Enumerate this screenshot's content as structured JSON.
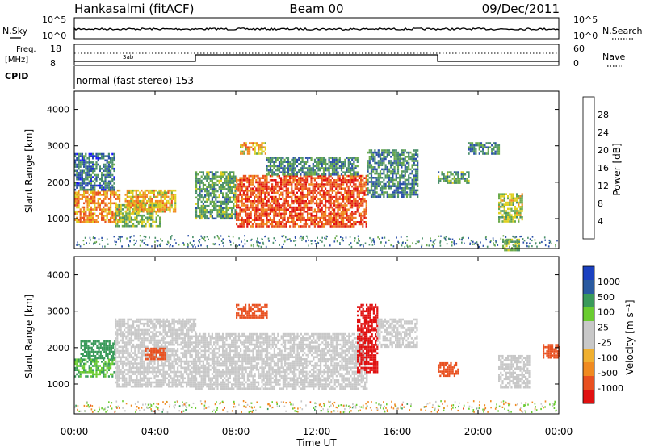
{
  "header": {
    "station": "Hankasalmi (fitACF)",
    "beam": "Beam 00",
    "date": "09/Dec/2011"
  },
  "params": {
    "nsky_label": "N.Sky",
    "nsearch_label": "N.Search",
    "noise_ticks": [
      "10^5",
      "10^0"
    ],
    "freq_label_1": "Freq.",
    "freq_label_2": "[MHz]",
    "freq_ticks": [
      "18",
      "8"
    ],
    "nave_label": "Nave",
    "nave_ticks": [
      "60",
      "0"
    ],
    "cpid_label": "CPID",
    "cpid_text": "normal (fast stereo) 153"
  },
  "colors": {
    "power": [
      "#1a1aff",
      "#2a4fa8",
      "#4a8f6a",
      "#6aaa4a",
      "#e0d020",
      "#f08a20",
      "#e85020",
      "#e01010"
    ],
    "velocity": [
      "#e01010",
      "#e85020",
      "#f08a20",
      "#f0b030",
      "#c8c8c8",
      "#c8c8c8",
      "#6acc30",
      "#3a9a5a",
      "#2a5aa0",
      "#1a40c0"
    ]
  },
  "chart_data": [
    {
      "type": "heatmap",
      "panel": "power",
      "ylabel": "Slant Range [km]",
      "yticks": [
        "1000",
        "2000",
        "3000",
        "4000"
      ],
      "ylim": [
        180,
        4500
      ],
      "colorbar_label": "Power [dB]",
      "colorbar_ticks": [
        "4",
        "8",
        "12",
        "16",
        "20",
        "24",
        "28"
      ],
      "colorbar_range": [
        0,
        32
      ],
      "regions": [
        {
          "t0": 0.0,
          "t1": 2.2,
          "r0": 900,
          "r1": 1800,
          "level": 22
        },
        {
          "t0": 0.0,
          "t1": 2.0,
          "r0": 1800,
          "r1": 2800,
          "level": 8
        },
        {
          "t0": 2.0,
          "t1": 4.2,
          "r0": 800,
          "r1": 1400,
          "level": 14
        },
        {
          "t0": 2.5,
          "t1": 5.0,
          "r0": 1200,
          "r1": 1800,
          "level": 20
        },
        {
          "t0": 6.0,
          "t1": 8.0,
          "r0": 1000,
          "r1": 2300,
          "level": 12
        },
        {
          "t0": 8.0,
          "t1": 14.5,
          "r0": 800,
          "r1": 2200,
          "level": 26
        },
        {
          "t0": 8.2,
          "t1": 9.5,
          "r0": 2800,
          "r1": 3100,
          "level": 20
        },
        {
          "t0": 9.5,
          "t1": 14.0,
          "r0": 2200,
          "r1": 2700,
          "level": 10
        },
        {
          "t0": 14.5,
          "t1": 17.0,
          "r0": 1600,
          "r1": 2900,
          "level": 10
        },
        {
          "t0": 18.0,
          "t1": 19.5,
          "r0": 2000,
          "r1": 2300,
          "level": 12
        },
        {
          "t0": 19.5,
          "t1": 21.0,
          "r0": 2800,
          "r1": 3100,
          "level": 10
        },
        {
          "t0": 21.0,
          "t1": 22.2,
          "r0": 900,
          "r1": 1700,
          "level": 16
        },
        {
          "t0": 21.2,
          "t1": 22.0,
          "r0": 150,
          "r1": 450,
          "level": 14
        }
      ]
    },
    {
      "type": "heatmap",
      "panel": "velocity",
      "ylabel": "Slant Range [km]",
      "yticks": [
        "1000",
        "2000",
        "3000",
        "4000"
      ],
      "ylim": [
        180,
        4500
      ],
      "colorbar_label": "Velocity [m s⁻¹]",
      "colorbar_ticks": [
        "1000",
        "500",
        "100",
        "25",
        "-25",
        "-100",
        "-500",
        "-1000"
      ],
      "regions": [
        {
          "t0": 0.0,
          "t1": 2.0,
          "r0": 1200,
          "r1": 1700,
          "level": 100
        },
        {
          "t0": 0.3,
          "t1": 2.0,
          "r0": 1700,
          "r1": 2200,
          "level": 200
        },
        {
          "t0": 2.0,
          "t1": 6.0,
          "r0": 900,
          "r1": 2800,
          "level": 0
        },
        {
          "t0": 3.5,
          "t1": 4.5,
          "r0": 1700,
          "r1": 2000,
          "level": -150
        },
        {
          "t0": 6.0,
          "t1": 14.5,
          "r0": 900,
          "r1": 2400,
          "level": 0
        },
        {
          "t0": 8.0,
          "t1": 9.5,
          "r0": 2800,
          "r1": 3200,
          "level": -150
        },
        {
          "t0": 14.0,
          "t1": 15.0,
          "r0": 1300,
          "r1": 3200,
          "level": -600
        },
        {
          "t0": 15.0,
          "t1": 17.0,
          "r0": 2000,
          "r1": 2800,
          "level": 0
        },
        {
          "t0": 18.0,
          "t1": 19.0,
          "r0": 1200,
          "r1": 1600,
          "level": -150
        },
        {
          "t0": 21.0,
          "t1": 22.5,
          "r0": 900,
          "r1": 1800,
          "level": 0
        },
        {
          "t0": 23.2,
          "t1": 24.0,
          "r0": 1700,
          "r1": 2100,
          "level": -150
        }
      ]
    }
  ],
  "xaxis": {
    "label": "Time UT",
    "ticks": [
      "00:00",
      "04:00",
      "08:00",
      "12:00",
      "16:00",
      "20:00",
      "00:00"
    ],
    "range_hours": [
      0,
      24
    ]
  }
}
